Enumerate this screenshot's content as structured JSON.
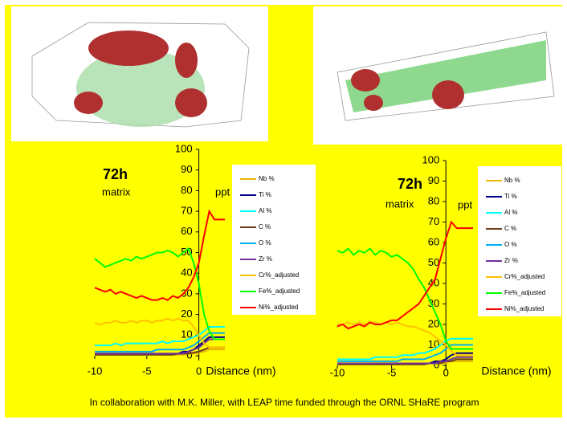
{
  "footnote": "In collaboration with M.K. Miller, with LEAP time funded through the ORNL SHaRE program",
  "chart_data": [
    {
      "type": "line",
      "x_label": "Distance (nm)",
      "annotations": [
        "72h",
        "matrix",
        "ppt"
      ],
      "xlim": [
        -10,
        2.5
      ],
      "xticks": [
        -10,
        -5,
        0
      ],
      "ylim": [
        0,
        100
      ],
      "yticks": [
        0,
        10,
        20,
        30,
        40,
        50,
        60,
        70,
        80,
        90,
        100
      ],
      "x": [
        -10,
        -9.5,
        -9,
        -8.5,
        -8,
        -7.5,
        -7,
        -6.5,
        -6,
        -5.5,
        -5,
        -4.5,
        -4,
        -3.5,
        -3,
        -2.5,
        -2,
        -1.5,
        -1,
        -0.5,
        0,
        0.5,
        1,
        1.5,
        2,
        2.5
      ],
      "series": [
        {
          "name": "Nb %",
          "color": "#e6b800",
          "values": [
            0.5,
            0.5,
            0.5,
            0.5,
            0.5,
            0.5,
            0.5,
            0.5,
            0.5,
            0.5,
            0.5,
            0.5,
            0.5,
            0.5,
            0.5,
            0.5,
            0.5,
            0.5,
            1,
            1,
            1.5,
            2,
            3,
            3,
            3,
            3
          ]
        },
        {
          "name": "Ti %",
          "color": "#00008b",
          "values": [
            1,
            1,
            1,
            1,
            1,
            1,
            1,
            1,
            1,
            1,
            1,
            1,
            1,
            1,
            1,
            1,
            1,
            2,
            2,
            3,
            5,
            7,
            9,
            9,
            9,
            9
          ]
        },
        {
          "name": "Al %",
          "color": "#00ffff",
          "values": [
            5,
            5,
            5,
            5,
            6,
            5,
            6,
            6,
            6,
            6,
            6,
            6,
            6,
            7,
            6,
            7,
            7,
            7,
            8,
            9,
            10,
            12,
            14,
            14,
            14,
            14
          ]
        },
        {
          "name": "C %",
          "color": "#6b3a1a",
          "values": [
            0.5,
            0.5,
            0.5,
            0.5,
            0.5,
            0.5,
            0.5,
            0.5,
            0.5,
            0.5,
            0.5,
            0.5,
            0.5,
            0.5,
            0.5,
            0.5,
            1,
            1,
            1,
            1.5,
            2,
            3,
            4,
            4,
            4,
            4
          ]
        },
        {
          "name": "O %",
          "color": "#00b0f0",
          "values": [
            2,
            2,
            2,
            2,
            2,
            2,
            2,
            2,
            2,
            2,
            2,
            2,
            3,
            3,
            3,
            3,
            3,
            3,
            4,
            5,
            7,
            9,
            11,
            11,
            11,
            11
          ]
        },
        {
          "name": "Zr %",
          "color": "#7030a0",
          "values": [
            1,
            1,
            1,
            1,
            1,
            1,
            1,
            1,
            1,
            1,
            1,
            1,
            1,
            1,
            1,
            1,
            1,
            1,
            2,
            3,
            4,
            6,
            8,
            8,
            8,
            8
          ]
        },
        {
          "name": "Cr%_adjusted",
          "color": "#ffc000",
          "values": [
            16,
            15,
            16,
            16,
            17,
            16,
            16,
            17,
            16,
            17,
            17,
            16,
            17,
            17,
            18,
            17,
            18,
            17,
            17,
            14,
            10,
            6,
            4,
            4,
            4,
            4
          ]
        },
        {
          "name": "Fe%_adjusted",
          "color": "#00ff00",
          "values": [
            47,
            45,
            43,
            44,
            45,
            46,
            47,
            46,
            48,
            47,
            48,
            49,
            50,
            50,
            51,
            50,
            48,
            50,
            52,
            45,
            35,
            20,
            12,
            8,
            8,
            8
          ]
        },
        {
          "name": "Ni%_adjusted",
          "color": "#ff0000",
          "values": [
            33,
            32,
            31,
            32,
            30,
            31,
            30,
            29,
            28,
            29,
            28,
            27,
            27,
            28,
            27,
            29,
            28,
            30,
            33,
            38,
            45,
            58,
            70,
            66,
            66,
            66
          ]
        }
      ]
    },
    {
      "type": "line",
      "x_label": "Distance (nm)",
      "annotations": [
        "72h",
        "matrix",
        "ppt"
      ],
      "xlim": [
        -10,
        2.5
      ],
      "xticks": [
        -10,
        -5,
        0
      ],
      "ylim": [
        0,
        100
      ],
      "yticks": [
        0,
        10,
        20,
        30,
        40,
        50,
        60,
        70,
        80,
        90,
        100
      ],
      "x": [
        -10,
        -9.5,
        -9,
        -8.5,
        -8,
        -7.5,
        -7,
        -6.5,
        -6,
        -5.5,
        -5,
        -4.5,
        -4,
        -3.5,
        -3,
        -2.5,
        -2,
        -1.5,
        -1,
        -0.5,
        0,
        0.5,
        1,
        1.5,
        2,
        2.5
      ],
      "series": [
        {
          "name": "Nb %",
          "color": "#e6b800",
          "values": [
            0.5,
            0.5,
            0.5,
            0.5,
            0.5,
            0.5,
            0.5,
            0.5,
            0.5,
            0.5,
            0.5,
            0.5,
            0.5,
            0.5,
            0.5,
            0.5,
            0.5,
            1,
            1,
            1,
            1.5,
            2,
            2,
            2,
            2,
            2
          ]
        },
        {
          "name": "Ti %",
          "color": "#00008b",
          "values": [
            1,
            1,
            1,
            1,
            1,
            1,
            1,
            1,
            1,
            1,
            1,
            1,
            1,
            1,
            1,
            1,
            1,
            1,
            2,
            2,
            3,
            5,
            6,
            6,
            6,
            6
          ]
        },
        {
          "name": "Al %",
          "color": "#00ffff",
          "values": [
            3,
            3,
            3,
            3,
            3,
            3,
            3,
            4,
            4,
            4,
            4,
            4,
            5,
            5,
            5,
            6,
            6,
            7,
            8,
            10,
            12,
            13,
            13,
            13,
            13,
            13
          ]
        },
        {
          "name": "C %",
          "color": "#6b3a1a",
          "values": [
            0.5,
            0.5,
            0.5,
            0.5,
            0.5,
            0.5,
            0.5,
            0.5,
            0.5,
            0.5,
            0.5,
            0.5,
            0.5,
            0.5,
            0.5,
            0.5,
            0.5,
            1,
            1,
            1,
            2,
            2,
            3,
            3,
            3,
            3
          ]
        },
        {
          "name": "O %",
          "color": "#00b0f0",
          "values": [
            2,
            2,
            2,
            2,
            2,
            2,
            2,
            2,
            2,
            2,
            2,
            2,
            3,
            3,
            3,
            3,
            3,
            4,
            5,
            6,
            8,
            10,
            10,
            10,
            10,
            10
          ]
        },
        {
          "name": "Zr %",
          "color": "#7030a0",
          "values": [
            1,
            1,
            1,
            1,
            1,
            1,
            1,
            1,
            1,
            1,
            1,
            1,
            1,
            1,
            1,
            1,
            1,
            1,
            1,
            2,
            2,
            3,
            4,
            4,
            4,
            4
          ]
        },
        {
          "name": "Cr%_adjusted",
          "color": "#ffc000",
          "values": [
            20,
            20,
            21,
            20,
            21,
            20,
            21,
            21,
            20,
            21,
            20,
            21,
            20,
            19,
            19,
            18,
            17,
            16,
            14,
            12,
            10,
            7,
            5,
            5,
            5,
            5
          ]
        },
        {
          "name": "Fe%_adjusted",
          "color": "#00ff00",
          "values": [
            56,
            55,
            57,
            54,
            56,
            55,
            57,
            54,
            56,
            55,
            53,
            54,
            52,
            50,
            47,
            42,
            38,
            32,
            26,
            20,
            12,
            8,
            8,
            8,
            8,
            8
          ]
        },
        {
          "name": "Ni%_adjusted",
          "color": "#ff0000",
          "values": [
            19,
            20,
            18,
            19,
            20,
            19,
            21,
            20,
            20,
            21,
            22,
            22,
            24,
            26,
            28,
            30,
            34,
            38,
            42,
            52,
            62,
            70,
            67,
            67,
            67,
            67
          ]
        }
      ]
    }
  ]
}
